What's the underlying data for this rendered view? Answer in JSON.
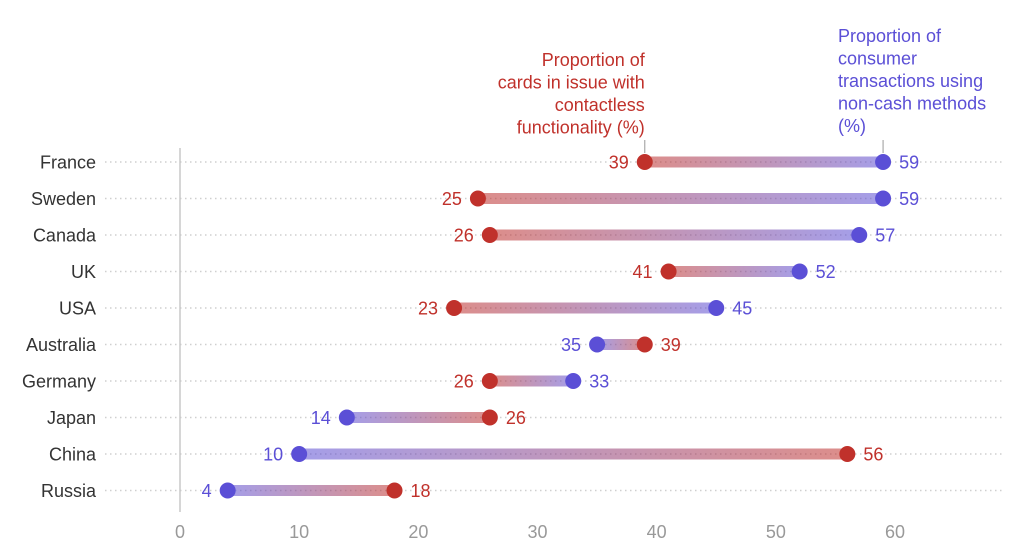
{
  "chart_data": {
    "type": "dumbbell",
    "title": "",
    "xlabel": "",
    "ylabel": "",
    "xlim": [
      0,
      60
    ],
    "x_ticks": [
      0,
      10,
      20,
      30,
      40,
      50,
      60
    ],
    "categories": [
      "France",
      "Sweden",
      "Canada",
      "UK",
      "USA",
      "Australia",
      "Germany",
      "Japan",
      "China",
      "Russia"
    ],
    "series": [
      {
        "name": "Proportion of cards in issue with contactless functionality (%)",
        "legend_lines": [
          "Proportion of",
          "cards in issue with",
          "contactless",
          "functionality (%)"
        ],
        "color": "#c0312b",
        "values": [
          39,
          25,
          26,
          41,
          23,
          39,
          26,
          26,
          56,
          18
        ]
      },
      {
        "name": "Proportion of consumer transactions using non-cash methods (%)",
        "legend_lines": [
          "Proportion of",
          "consumer",
          "transactions using",
          "non-cash methods",
          "(%)"
        ],
        "color": "#5b4fd6",
        "values": [
          59,
          59,
          57,
          52,
          45,
          35,
          33,
          14,
          10,
          4
        ]
      }
    ],
    "grid": true
  }
}
